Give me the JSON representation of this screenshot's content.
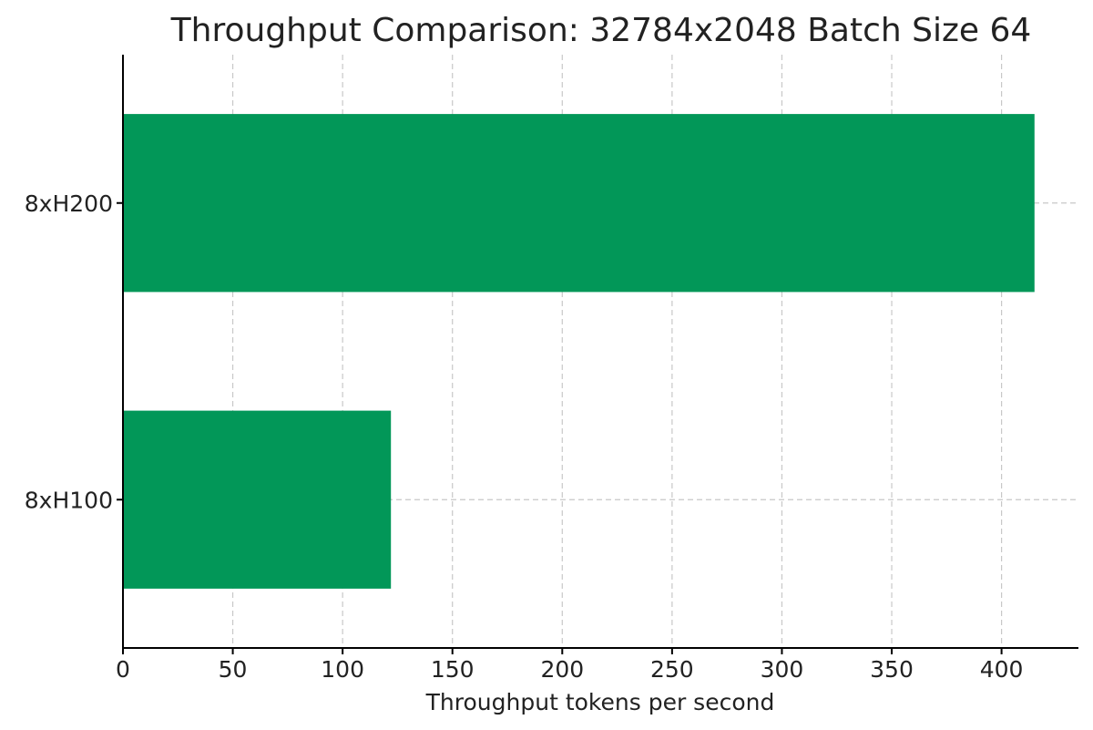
{
  "chart_data": {
    "type": "bar",
    "orientation": "horizontal",
    "title": "Throughput Comparison: 32784x2048 Batch Size 64",
    "xlabel": "Throughput tokens per second",
    "ylabel": "",
    "categories": [
      "8xH100",
      "8xH200"
    ],
    "values": [
      122,
      415
    ],
    "xlim": [
      0,
      435
    ],
    "xticks": [
      0,
      50,
      100,
      150,
      200,
      250,
      300,
      350,
      400
    ],
    "grid": true,
    "bar_color": "#029758"
  }
}
